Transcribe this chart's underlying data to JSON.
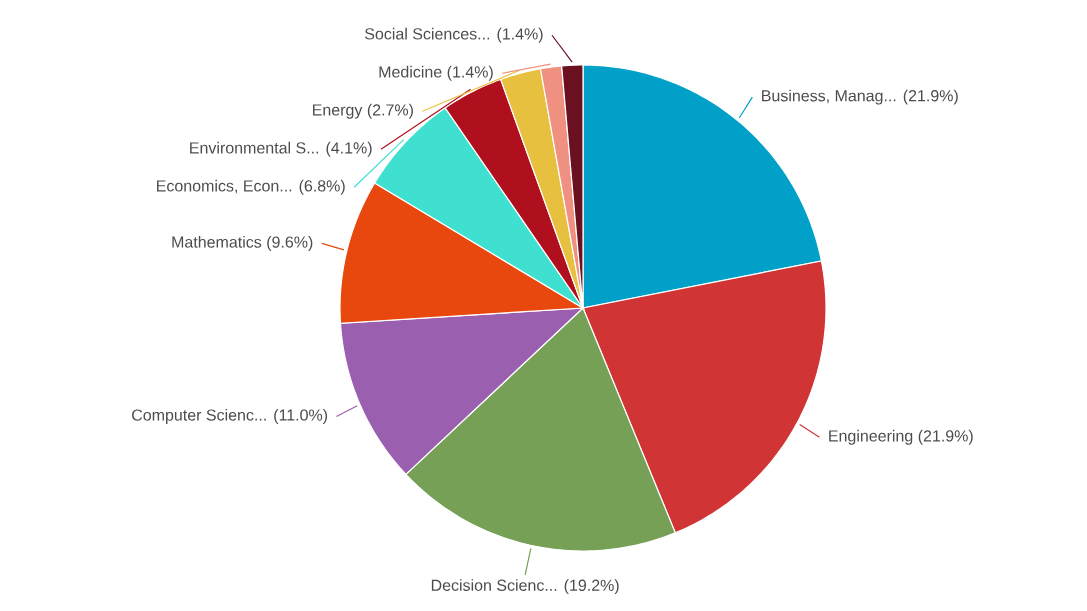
{
  "chart_data": {
    "type": "pie",
    "categories": [
      "Business, Manag...",
      "Engineering",
      "Decision Scienc...",
      "Computer Scienc...",
      "Mathematics",
      "Economics, Econ...",
      "Environmental S...",
      "Energy",
      "Medicine",
      "Social Sciences..."
    ],
    "values": [
      21.9,
      21.9,
      19.2,
      11.0,
      9.6,
      6.8,
      4.1,
      2.7,
      1.4,
      1.4
    ],
    "value_labels": [
      "(21.9%)",
      "(21.9%)",
      "(19.2%)",
      "(11.0%)",
      "(9.6%)",
      "(6.8%)",
      "(4.1%)",
      "(2.7%)",
      "(1.4%)",
      "(1.4%)"
    ],
    "colors": [
      "#00a0c8",
      "#d03434",
      "#76a056",
      "#9b5fb0",
      "#e8480e",
      "#40e0d0",
      "#b0101e",
      "#e8c040",
      "#f09080",
      "#6a1020"
    ]
  }
}
